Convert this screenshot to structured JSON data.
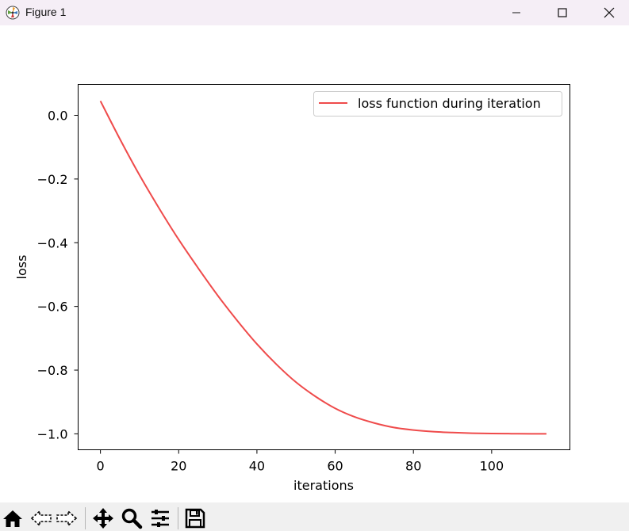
{
  "window": {
    "title": "Figure 1",
    "icons": [
      "matplotlib-logo-icon",
      "minimize-icon",
      "maximize-icon",
      "close-icon"
    ]
  },
  "toolbar": {
    "tools": [
      "home-icon",
      "back-icon",
      "forward-icon",
      "pan-icon",
      "zoom-icon",
      "configure-subplots-icon",
      "save-icon"
    ]
  },
  "colors": {
    "series": "#ef4b4b",
    "titlebar": "#f5eef6",
    "toolbar": "#f0f0f0"
  },
  "chart_data": {
    "type": "line",
    "title": "",
    "xlabel": "iterations",
    "ylabel": "loss",
    "xlim": [
      -5.7,
      120
    ],
    "ylim": [
      -1.05,
      0.097
    ],
    "xticks": [
      0,
      20,
      40,
      60,
      80,
      100
    ],
    "xtick_labels": [
      "0",
      "20",
      "40",
      "60",
      "80",
      "100"
    ],
    "yticks": [
      0.0,
      -0.2,
      -0.4,
      -0.6,
      -0.8,
      -1.0
    ],
    "ytick_labels": [
      "0.0",
      "−0.2",
      "−0.4",
      "−0.6",
      "−0.8",
      "−1.0"
    ],
    "grid": false,
    "legend": {
      "position": "upper right",
      "entries": [
        "loss function during iteration"
      ]
    },
    "series": [
      {
        "name": "loss function during iteration",
        "color": "#ef4b4b",
        "x": [
          0,
          5,
          10,
          15,
          20,
          25,
          30,
          35,
          40,
          45,
          50,
          55,
          60,
          65,
          70,
          75,
          80,
          85,
          90,
          95,
          100,
          105,
          110,
          114
        ],
        "y": [
          0.045,
          -0.075,
          -0.188,
          -0.292,
          -0.39,
          -0.48,
          -0.566,
          -0.645,
          -0.718,
          -0.782,
          -0.838,
          -0.883,
          -0.92,
          -0.947,
          -0.966,
          -0.98,
          -0.988,
          -0.993,
          -0.996,
          -0.998,
          -0.999,
          -0.9995,
          -0.9998,
          -1.0
        ]
      }
    ]
  }
}
